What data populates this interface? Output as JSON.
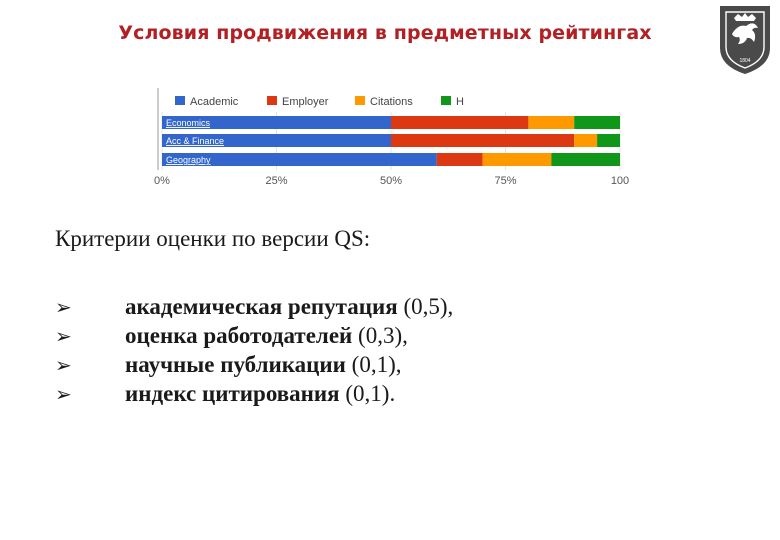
{
  "slide": {
    "title": "Условия продвижения в предметных рейтингах",
    "criteria_heading": "Критерии оценки по версии QS:",
    "bullet_glyph": "➢",
    "criteria": [
      {
        "name": "академическая репутация",
        "weight": "(0,5),"
      },
      {
        "name": "оценка работодателей",
        "weight": "(0,3),"
      },
      {
        "name": "научные публикации",
        "weight": "(0,1),"
      },
      {
        "name": "индекс цитирования",
        "weight": "(0,1)."
      }
    ]
  },
  "logo": {
    "icon": "university-crest-icon",
    "color": "#4a4a4a",
    "text": "1804"
  },
  "chart_data": {
    "type": "bar",
    "orientation": "horizontal",
    "stacked": true,
    "categories": [
      "Economics",
      "Acc & Finance",
      "Geography"
    ],
    "series": [
      {
        "name": "Academic",
        "color": "#3366cc",
        "values": [
          50,
          50,
          60
        ]
      },
      {
        "name": "Employer",
        "color": "#dc3912",
        "values": [
          30,
          40,
          10
        ]
      },
      {
        "name": "Citations",
        "color": "#ff9900",
        "values": [
          10,
          5,
          15
        ]
      },
      {
        "name": "H",
        "color": "#109618",
        "values": [
          10,
          5,
          15
        ]
      }
    ],
    "xticks": [
      "0%",
      "25%",
      "50%",
      "75%",
      "100"
    ],
    "xlim": [
      0,
      100
    ],
    "grid": true,
    "legend": "top"
  }
}
